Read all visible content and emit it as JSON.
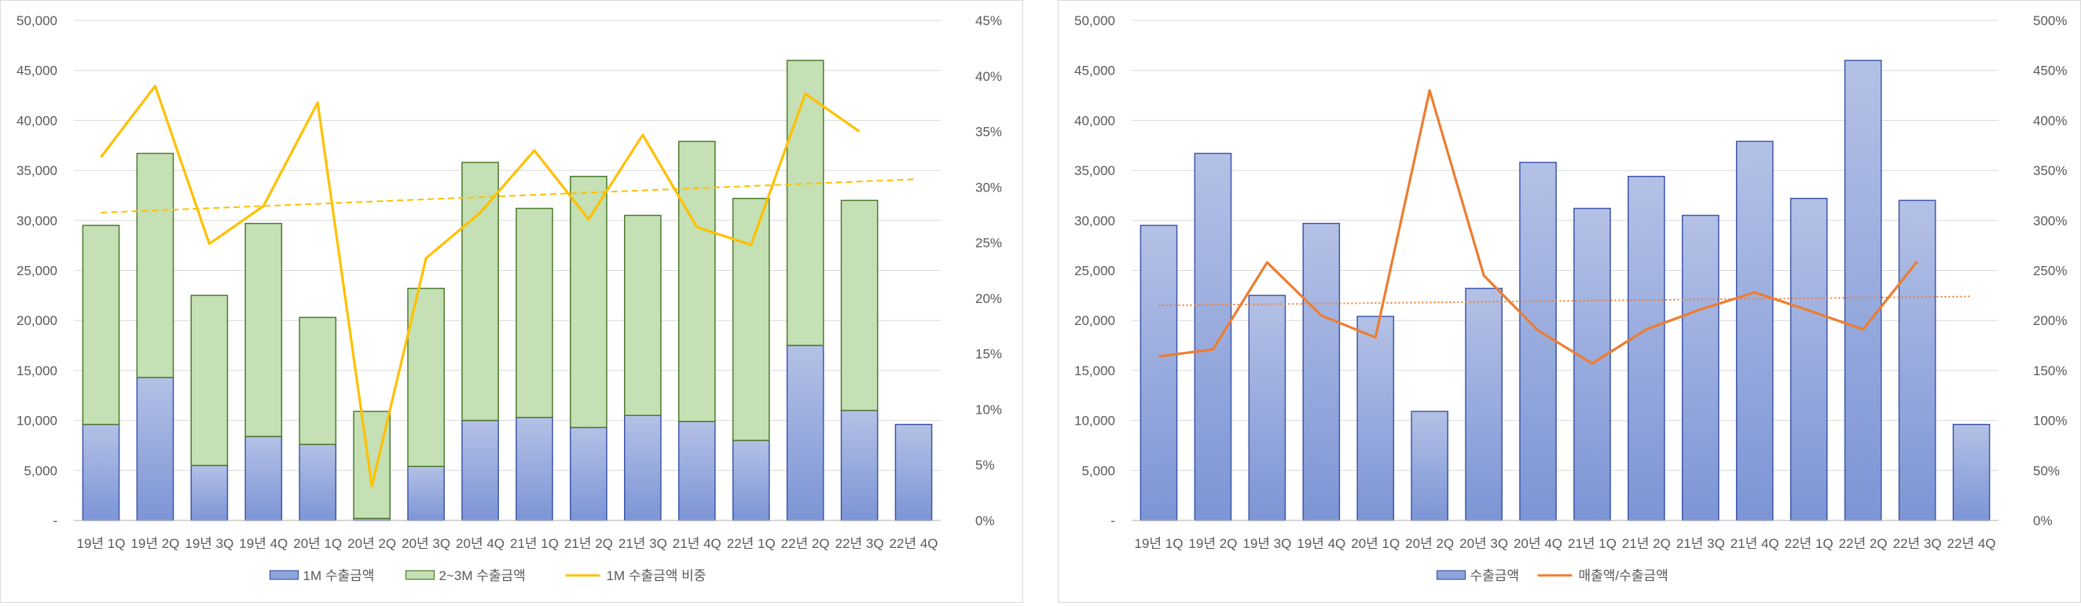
{
  "chart_data": [
    {
      "type": "bar",
      "title": "",
      "categories": [
        "19년 1Q",
        "19년 2Q",
        "19년 3Q",
        "19년 4Q",
        "20년 1Q",
        "20년 2Q",
        "20년 3Q",
        "20년 4Q",
        "21년 1Q",
        "21년 2Q",
        "21년 3Q",
        "21년 4Q",
        "22년 1Q",
        "22년 2Q",
        "22년 3Q",
        "22년 4Q"
      ],
      "stacked": true,
      "series": [
        {
          "name": "1M 수출금액",
          "kind": "bar",
          "axis": "left",
          "color": "#8fa4da",
          "values": [
            9600,
            14300,
            5500,
            8400,
            7600,
            200,
            5400,
            10000,
            10300,
            9300,
            10500,
            9900,
            8000,
            17500,
            11000,
            9600
          ]
        },
        {
          "name": "2~3M 수출금액",
          "kind": "bar",
          "axis": "left",
          "color": "#c5e0b4",
          "values": [
            19900,
            22400,
            17000,
            21300,
            12700,
            10700,
            17800,
            25800,
            20900,
            25100,
            20000,
            28000,
            24200,
            28500,
            21000,
            0
          ]
        },
        {
          "name": "1M 수출금액 비중",
          "kind": "line",
          "axis": "right",
          "color": "#ffc000",
          "values": [
            0.327,
            0.391,
            0.249,
            0.283,
            0.376,
            0.031,
            0.236,
            0.277,
            0.333,
            0.271,
            0.347,
            0.264,
            0.248,
            0.384,
            0.35,
            null
          ]
        }
      ],
      "trendline": {
        "series": "1M 수출금액 비중",
        "style": "dashed",
        "from": 0.277,
        "to": 0.307,
        "color": "#ffc000"
      },
      "y_left": {
        "ylim": [
          0,
          50000
        ],
        "ticks": [
          "-",
          "5,000",
          "10,000",
          "15,000",
          "20,000",
          "25,000",
          "30,000",
          "35,000",
          "40,000",
          "45,000",
          "50,000"
        ]
      },
      "y_right": {
        "ylim": [
          0,
          0.45
        ],
        "ticks": [
          "0%",
          "5%",
          "10%",
          "15%",
          "20%",
          "25%",
          "30%",
          "35%",
          "40%",
          "45%"
        ]
      },
      "legend_position": "bottom",
      "grid": true
    },
    {
      "type": "bar",
      "title": "",
      "categories": [
        "19년 1Q",
        "19년 2Q",
        "19년 3Q",
        "19년 4Q",
        "20년 1Q",
        "20년 2Q",
        "20년 3Q",
        "20년 4Q",
        "21년 1Q",
        "21년 2Q",
        "21년 3Q",
        "21년 4Q",
        "22년 1Q",
        "22년 2Q",
        "22년 3Q",
        "22년 4Q"
      ],
      "stacked": false,
      "series": [
        {
          "name": "수출금액",
          "kind": "bar",
          "axis": "left",
          "color": "#8fa4da",
          "values": [
            29500,
            36700,
            22500,
            29700,
            20400,
            10900,
            23200,
            35800,
            31200,
            34400,
            30500,
            37900,
            32200,
            46000,
            32000,
            9600
          ]
        },
        {
          "name": "매출액/수출금액",
          "kind": "line",
          "axis": "right",
          "color": "#ed7d31",
          "values": [
            1.64,
            1.71,
            2.58,
            2.05,
            1.83,
            4.3,
            2.45,
            1.9,
            1.57,
            1.91,
            2.11,
            2.28,
            2.1,
            1.91,
            2.59,
            null
          ]
        }
      ],
      "trendline": {
        "series": "매출액/수출금액",
        "style": "dotted",
        "from": 2.15,
        "to": 2.24,
        "color": "#ed7d31"
      },
      "y_left": {
        "ylim": [
          0,
          50000
        ],
        "ticks": [
          "-",
          "5,000",
          "10,000",
          "15,000",
          "20,000",
          "25,000",
          "30,000",
          "35,000",
          "40,000",
          "45,000",
          "50,000"
        ]
      },
      "y_right": {
        "ylim": [
          0,
          5
        ],
        "ticks": [
          "0%",
          "50%",
          "100%",
          "150%",
          "200%",
          "250%",
          "300%",
          "350%",
          "400%",
          "450%",
          "500%"
        ]
      },
      "legend_position": "bottom",
      "grid": true
    }
  ]
}
